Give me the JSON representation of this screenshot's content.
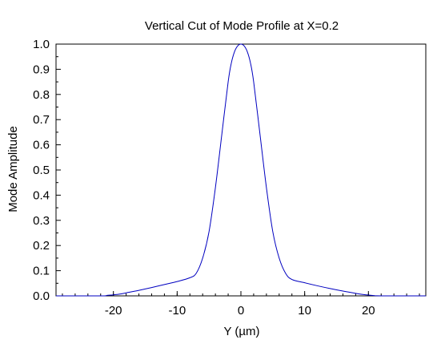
{
  "chart_data": {
    "type": "line",
    "title": "Vertical Cut of Mode Profile at X=0.2",
    "xlabel": "Y (µm)",
    "ylabel": "Mode Amplitude",
    "xlim": [
      -29,
      29
    ],
    "ylim": [
      0,
      1
    ],
    "xticks": [
      -20,
      -10,
      0,
      10,
      20
    ],
    "xtick_labels": [
      "-20",
      "-10",
      "0",
      "10",
      "20"
    ],
    "yticks": [
      0,
      0.1,
      0.2,
      0.3,
      0.4,
      0.5,
      0.6,
      0.7,
      0.8,
      0.9,
      1.0
    ],
    "ytick_labels": [
      "0.0",
      "0.1",
      "0.2",
      "0.3",
      "0.4",
      "0.5",
      "0.6",
      "0.7",
      "0.8",
      "0.9",
      "1.0"
    ],
    "grid": false,
    "series": [
      {
        "color": "#0000c0",
        "x": [
          -29,
          -22,
          -21,
          -20,
          -19,
          -18,
          -16,
          -14,
          -12,
          -10,
          -8,
          -7,
          -6,
          -5,
          -4,
          -3,
          -2,
          -1.5,
          -1,
          -0.5,
          0,
          0.5,
          1,
          1.5,
          2,
          3,
          4,
          5,
          6,
          7,
          8,
          10,
          12,
          14,
          16,
          18,
          19,
          20,
          21,
          22,
          29
        ],
        "y": [
          0,
          0,
          0.002,
          0.004,
          0.007,
          0.012,
          0.022,
          0.033,
          0.045,
          0.057,
          0.072,
          0.09,
          0.15,
          0.255,
          0.43,
          0.64,
          0.85,
          0.925,
          0.97,
          0.993,
          1.0,
          0.993,
          0.97,
          0.925,
          0.85,
          0.64,
          0.43,
          0.255,
          0.15,
          0.09,
          0.065,
          0.052,
          0.04,
          0.029,
          0.019,
          0.01,
          0.006,
          0.003,
          0.001,
          0,
          0
        ]
      }
    ]
  }
}
